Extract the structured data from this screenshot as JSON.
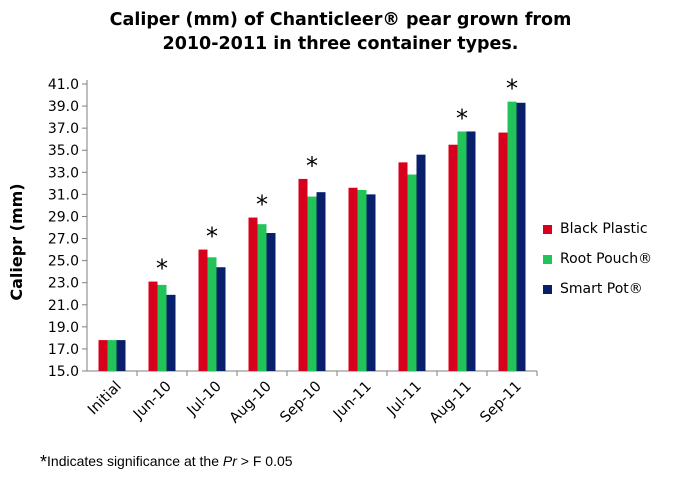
{
  "chart_data": {
    "type": "bar",
    "title_lines": [
      "Caliper (mm) of Chanticleer® pear grown from",
      "2010-2011 in three container types."
    ],
    "ylabel": "Caliepr (mm)",
    "xlabel": "",
    "ylim": [
      15.0,
      41.0
    ],
    "yticks": [
      "15.0",
      "17.0",
      "19.0",
      "21.0",
      "23.0",
      "25.0",
      "27.0",
      "29.0",
      "31.0",
      "33.0",
      "35.0",
      "37.0",
      "39.0",
      "41.0"
    ],
    "categories": [
      "Initial",
      "Jun-10",
      "Jul-10",
      "Aug-10",
      "Sep-10",
      "Jun-11",
      "Jul-11",
      "Aug-11",
      "Sep-11"
    ],
    "series": [
      {
        "name": "Black Plastic",
        "color": "#d9001e",
        "values": [
          17.8,
          23.1,
          26.0,
          28.9,
          32.4,
          31.6,
          33.9,
          35.5,
          36.6
        ]
      },
      {
        "name": "Root Pouch®",
        "color": "#22c45a",
        "values": [
          17.8,
          22.8,
          25.3,
          28.3,
          30.8,
          31.4,
          32.8,
          36.7,
          39.4
        ]
      },
      {
        "name": "Smart Pot®",
        "color": "#0a1f6b",
        "values": [
          17.8,
          21.9,
          24.4,
          27.5,
          31.2,
          31.0,
          34.6,
          36.7,
          39.3
        ]
      }
    ],
    "significance_marker": "*",
    "significant": [
      false,
      true,
      true,
      true,
      true,
      false,
      false,
      true,
      true
    ],
    "grid": false,
    "legend_position": "right"
  },
  "footnote": {
    "star": "*",
    "text_before": "Indicates significance at the ",
    "italic": "Pr",
    "text_after": " > F 0.05"
  }
}
